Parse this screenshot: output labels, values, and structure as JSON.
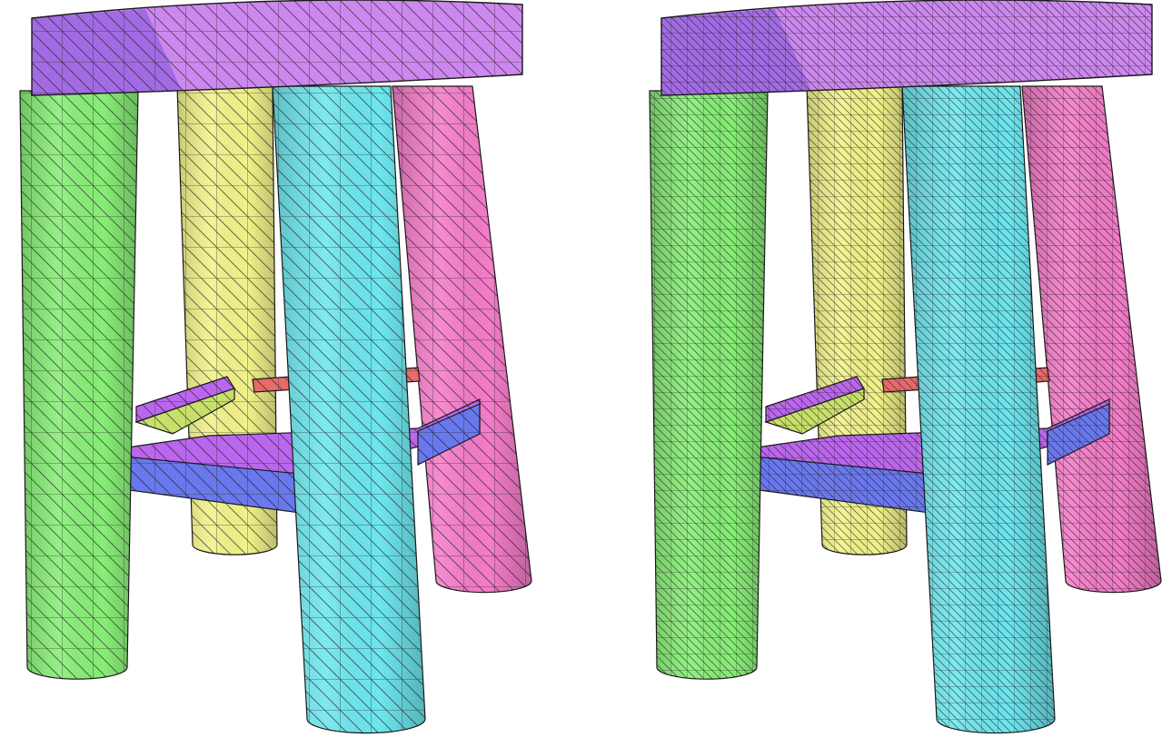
{
  "figure": {
    "panels": [
      {
        "id": "left",
        "parts": [
          {
            "name": "seat",
            "color": "#cc88ee",
            "side_color": "#9a66e0"
          },
          {
            "name": "leg-back-left",
            "color": "#f2f28a"
          },
          {
            "name": "leg-back-right",
            "color": "#f47cc8"
          },
          {
            "name": "leg-front-left",
            "color": "#88ee77"
          },
          {
            "name": "leg-front-right",
            "color": "#6ee6ee"
          },
          {
            "name": "rung-back",
            "color": "#bb66ee"
          },
          {
            "name": "rung-right",
            "color": "#e86a6a"
          },
          {
            "name": "rung-front",
            "color": "#6a78ee"
          },
          {
            "name": "rung-left",
            "color": "#c8e06a"
          }
        ]
      },
      {
        "id": "right",
        "parts": [
          {
            "name": "seat",
            "color": "#cc88ee",
            "side_color": "#9a66e0"
          },
          {
            "name": "leg-back-left",
            "color": "#f2f28a"
          },
          {
            "name": "leg-back-right",
            "color": "#f47cc8"
          },
          {
            "name": "leg-front-left",
            "color": "#88ee77"
          },
          {
            "name": "leg-front-right",
            "color": "#6ee6ee"
          },
          {
            "name": "rung-back",
            "color": "#bb66ee"
          },
          {
            "name": "rung-right",
            "color": "#e86a6a"
          },
          {
            "name": "rung-front",
            "color": "#6a78ee"
          },
          {
            "name": "rung-left",
            "color": "#c8e06a"
          }
        ]
      }
    ],
    "mesh_line_color": "#1a1a1a"
  }
}
